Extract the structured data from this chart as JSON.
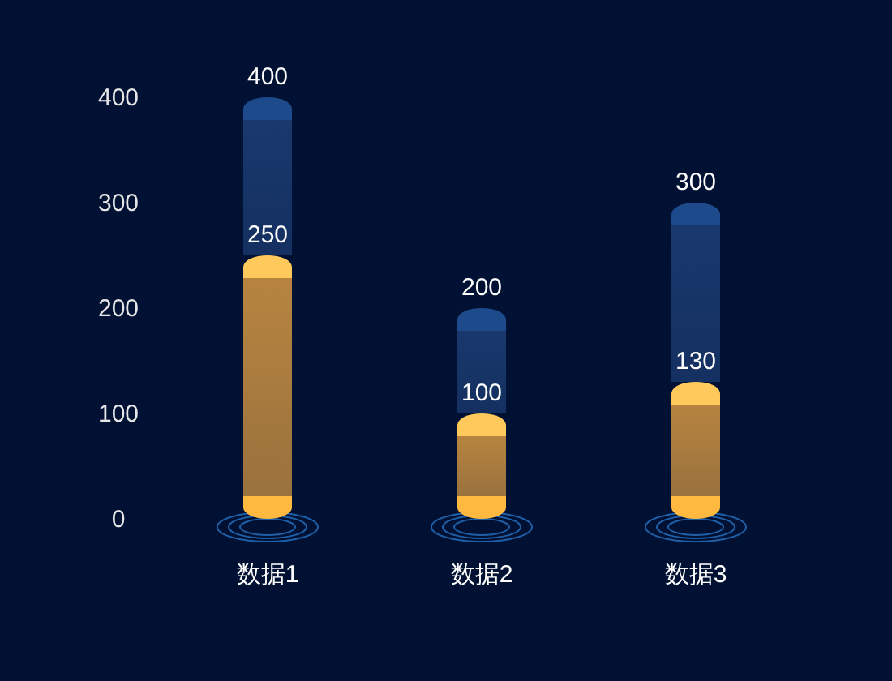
{
  "chart_data": {
    "type": "bar",
    "categories": [
      "数据1",
      "数据2",
      "数据3"
    ],
    "series": [
      {
        "color": "#c08a40",
        "values": [
          250,
          100,
          130
        ],
        "value_labels": [
          "250",
          "100",
          "130"
        ]
      },
      {
        "color": "#1b3a70",
        "values": [
          150,
          100,
          170
        ]
      }
    ],
    "stacked": true,
    "totals": [
      "400",
      "200",
      "300"
    ],
    "ylim": [
      0,
      400
    ],
    "yticks": [
      0,
      100,
      200,
      300,
      400
    ],
    "grid": false
  }
}
